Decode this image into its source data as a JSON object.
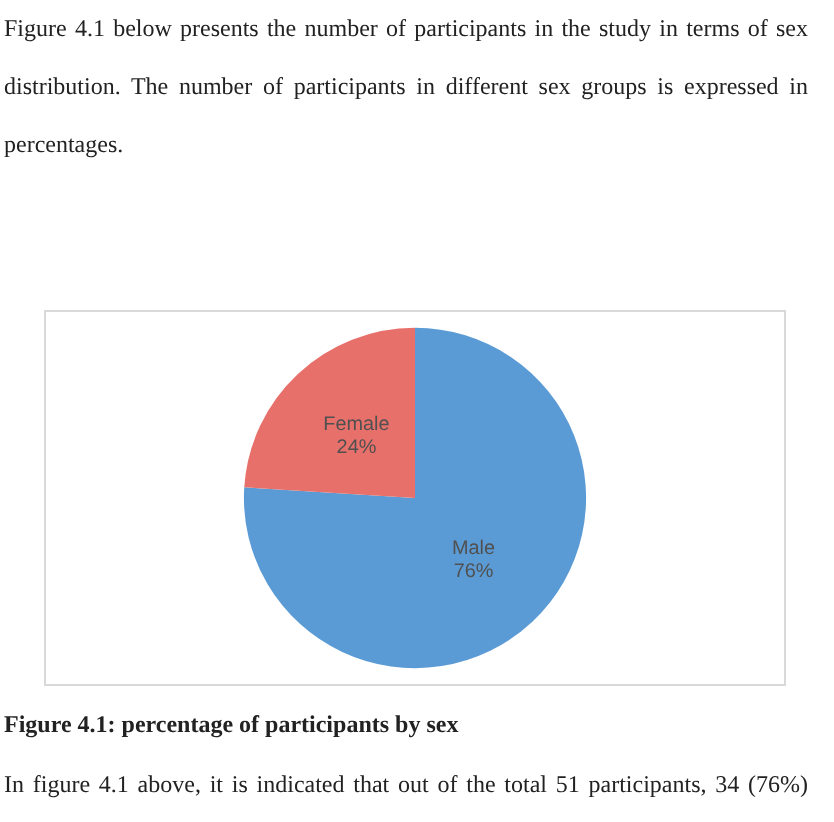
{
  "chart_data": {
    "type": "pie",
    "title": "Figure 4.1: percentage of participants by sex",
    "categories": [
      "Male",
      "Female"
    ],
    "values": [
      76,
      24
    ],
    "colors": [
      "#5b9bd5",
      "#e8706a"
    ],
    "value_labels": [
      "76%",
      "24%"
    ],
    "annotations": [
      "Figure 4.1 below presents the number of participants in the study in terms of sex distribution. The number of participants in different sex groups is expressed in percentages.",
      "In figure 4.1 above, it is indicated that out of the total 51 participants, 34 (76%)"
    ]
  }
}
